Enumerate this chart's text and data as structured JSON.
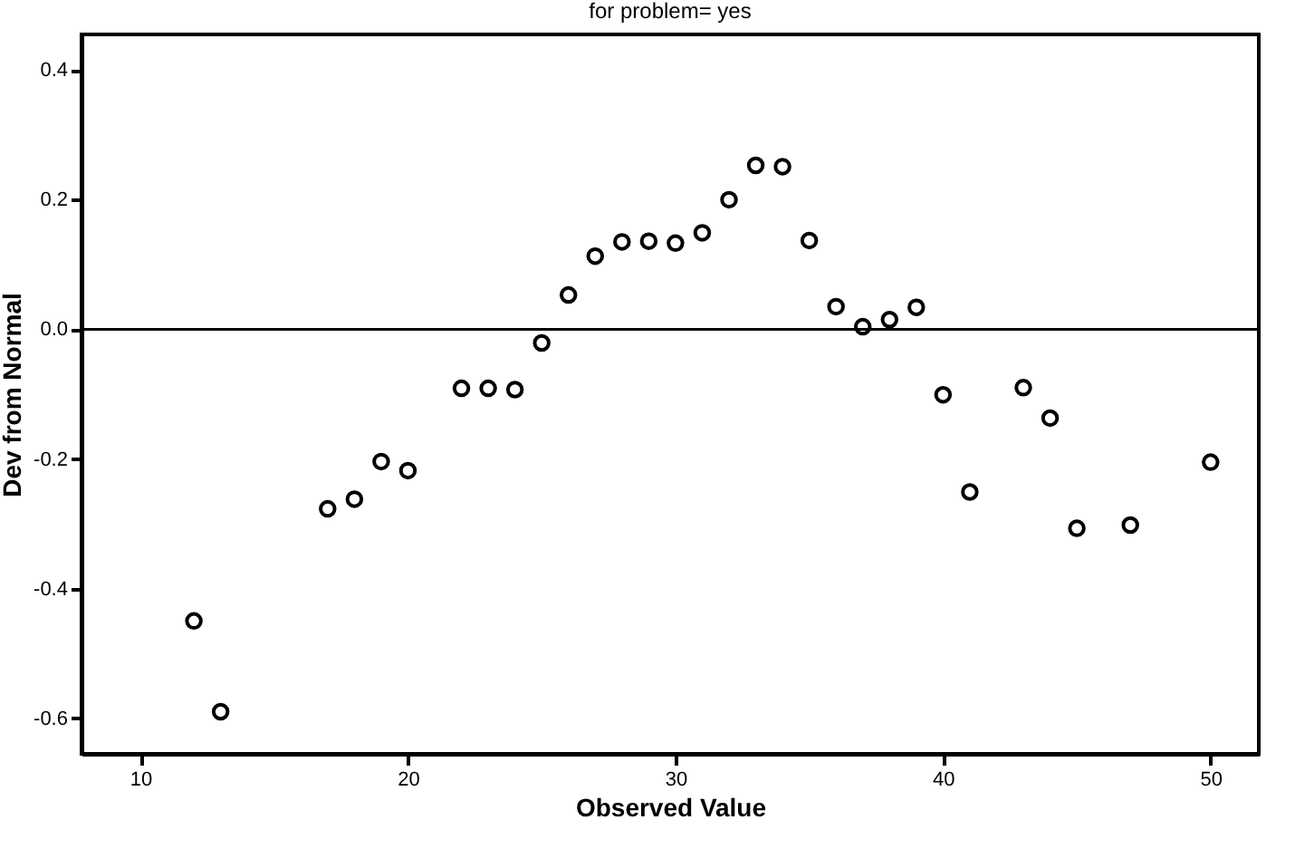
{
  "chart_data": {
    "type": "scatter",
    "title": "for problem= yes",
    "xlabel": "Observed Value",
    "ylabel": "Dev from Normal",
    "x": [
      12,
      13,
      17,
      18,
      19,
      20,
      22,
      23,
      24,
      25,
      26,
      27,
      28,
      29,
      30,
      31,
      32,
      33,
      34,
      35,
      36,
      37,
      38,
      39,
      40,
      41,
      43,
      44,
      45,
      47,
      50
    ],
    "series": [
      {
        "color": "#000000",
        "values": [
          -0.45,
          -0.59,
          -0.277,
          -0.262,
          -0.204,
          -0.218,
          -0.091,
          -0.091,
          -0.093,
          -0.021,
          0.053,
          0.113,
          0.135,
          0.136,
          0.133,
          0.149,
          0.2,
          0.253,
          0.251,
          0.137,
          0.035,
          0.004,
          0.015,
          0.034,
          -0.101,
          -0.251,
          -0.09,
          -0.137,
          -0.307,
          -0.302,
          -0.205
        ]
      }
    ],
    "xlim": [
      7.8,
      51.8
    ],
    "xticks": [
      10,
      20,
      30,
      40,
      50
    ],
    "ylim": [
      -0.655,
      0.455
    ],
    "yticks": [
      {
        "value": -0.6,
        "label": "-0.6"
      },
      {
        "value": -0.4,
        "label": "-0.4"
      },
      {
        "value": -0.2,
        "label": "-0.2"
      },
      {
        "value": 0,
        "label": "0.0"
      },
      {
        "value": 0.2,
        "label": "0.2"
      },
      {
        "value": 0.4,
        "label": "0.4"
      }
    ],
    "ref_lines": [
      {
        "axis": "y",
        "value": 0,
        "color": "#000000"
      }
    ],
    "marker": "circle",
    "grid": false
  }
}
